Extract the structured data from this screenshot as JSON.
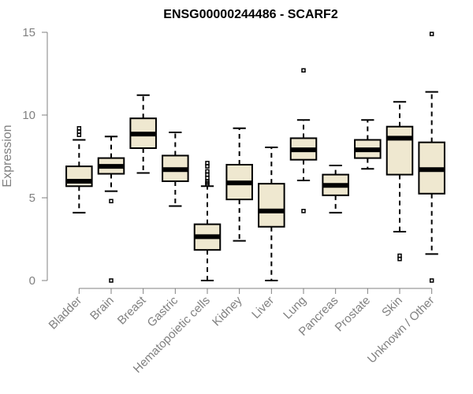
{
  "chart_data": {
    "type": "boxplot",
    "title": "ENSG00000244486 - SCARF2",
    "xlabel": "",
    "ylabel": "Expression",
    "ylim": [
      0,
      15
    ],
    "yticks": [
      0,
      5,
      10,
      15
    ],
    "categories": [
      "Bladder",
      "Brain",
      "Breast",
      "Gastric",
      "Hematopoietic cells",
      "Kidney",
      "Liver",
      "Lung",
      "Pancreas",
      "Prostate",
      "Skin",
      "Unknown / Other"
    ],
    "boxes": [
      {
        "category": "Bladder",
        "whisker_low": 4.1,
        "q1": 5.7,
        "median": 6.0,
        "q3": 6.9,
        "whisker_high": 8.5,
        "outliers": [
          8.8,
          9.0,
          9.2
        ]
      },
      {
        "category": "Brain",
        "whisker_low": 5.4,
        "q1": 6.45,
        "median": 6.9,
        "q3": 7.4,
        "whisker_high": 8.7,
        "outliers": [
          4.8,
          0.0
        ]
      },
      {
        "category": "Breast",
        "whisker_low": 6.5,
        "q1": 8.0,
        "median": 8.85,
        "q3": 9.8,
        "whisker_high": 11.2,
        "outliers": []
      },
      {
        "category": "Gastric",
        "whisker_low": 4.5,
        "q1": 6.0,
        "median": 6.7,
        "q3": 7.55,
        "whisker_high": 8.95,
        "outliers": []
      },
      {
        "category": "Hematopoietic cells",
        "whisker_low": 0.0,
        "q1": 1.85,
        "median": 2.65,
        "q3": 3.4,
        "whisker_high": 5.7,
        "outliers": [
          5.8,
          5.9,
          6.0,
          6.2,
          6.4,
          6.6,
          6.9,
          7.1
        ]
      },
      {
        "category": "Kidney",
        "whisker_low": 2.4,
        "q1": 4.9,
        "median": 5.9,
        "q3": 7.0,
        "whisker_high": 9.2,
        "outliers": []
      },
      {
        "category": "Liver",
        "whisker_low": 0.0,
        "q1": 3.25,
        "median": 4.2,
        "q3": 5.85,
        "whisker_high": 8.05,
        "outliers": []
      },
      {
        "category": "Lung",
        "whisker_low": 6.05,
        "q1": 7.3,
        "median": 7.9,
        "q3": 8.6,
        "whisker_high": 9.7,
        "outliers": [
          12.7,
          4.2
        ]
      },
      {
        "category": "Pancreas",
        "whisker_low": 4.1,
        "q1": 5.15,
        "median": 5.75,
        "q3": 6.4,
        "whisker_high": 6.95,
        "outliers": []
      },
      {
        "category": "Prostate",
        "whisker_low": 6.75,
        "q1": 7.4,
        "median": 7.9,
        "q3": 8.5,
        "whisker_high": 9.7,
        "outliers": []
      },
      {
        "category": "Skin",
        "whisker_low": 2.95,
        "q1": 6.4,
        "median": 8.6,
        "q3": 9.3,
        "whisker_high": 10.8,
        "outliers": [
          1.5,
          1.3
        ]
      },
      {
        "category": "Unknown / Other",
        "whisker_low": 1.6,
        "q1": 5.25,
        "median": 6.7,
        "q3": 8.35,
        "whisker_high": 11.4,
        "outliers": [
          14.9,
          0.0
        ]
      }
    ],
    "box_fill": "#efe8d0",
    "box_stroke": "#000000",
    "axis_color": "#808080"
  }
}
